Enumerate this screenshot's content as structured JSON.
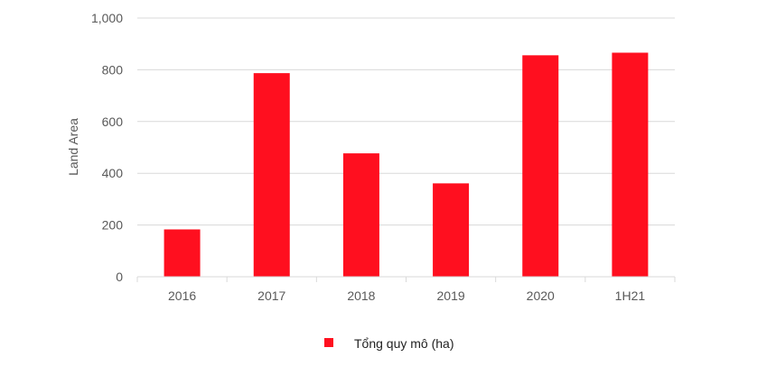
{
  "chart_data": {
    "type": "bar",
    "categories": [
      "2016",
      "2017",
      "2018",
      "2019",
      "2020",
      "1H21"
    ],
    "series": [
      {
        "name": "Tổng quy mô (ha)",
        "values": [
          183,
          787,
          477,
          361,
          856,
          866
        ],
        "color": "#ff0f1f"
      }
    ],
    "xlabel": "",
    "ylabel": "Land Area",
    "ylim": [
      0,
      1000
    ],
    "yticks": [
      0,
      200,
      400,
      600,
      800,
      1000
    ],
    "ytick_labels": [
      "0",
      "200",
      "400",
      "600",
      "800",
      "1,000"
    ],
    "grid": true,
    "grid_color": "#d9d9d9",
    "legend_position": "bottom"
  }
}
